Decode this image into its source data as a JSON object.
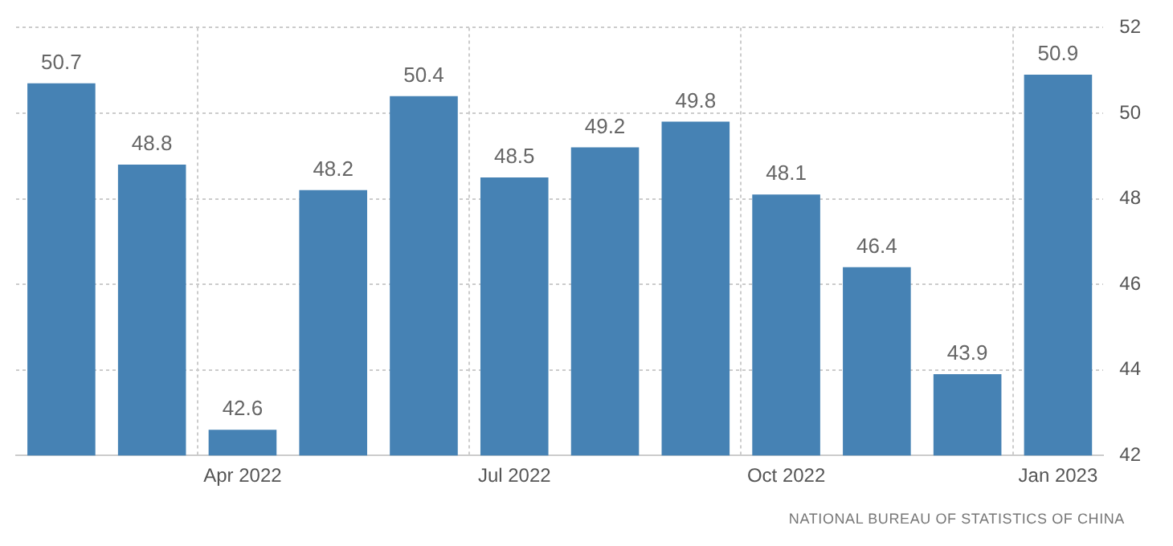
{
  "chart_data": {
    "type": "bar",
    "categories": [
      null,
      null,
      "Apr 2022",
      null,
      null,
      "Jul 2022",
      null,
      null,
      "Oct 2022",
      null,
      null,
      "Jan 2023"
    ],
    "values": [
      50.7,
      48.8,
      42.6,
      48.2,
      50.4,
      48.5,
      49.2,
      49.8,
      48.1,
      46.4,
      43.9,
      50.9
    ],
    "color": "#4682b4",
    "ylim": [
      42,
      52
    ],
    "yticks": [
      42,
      44,
      46,
      48,
      50,
      52
    ],
    "grid": true,
    "data_labels": true,
    "annotations": [
      "NATIONAL BUREAU OF STATISTICS OF CHINA"
    ]
  }
}
